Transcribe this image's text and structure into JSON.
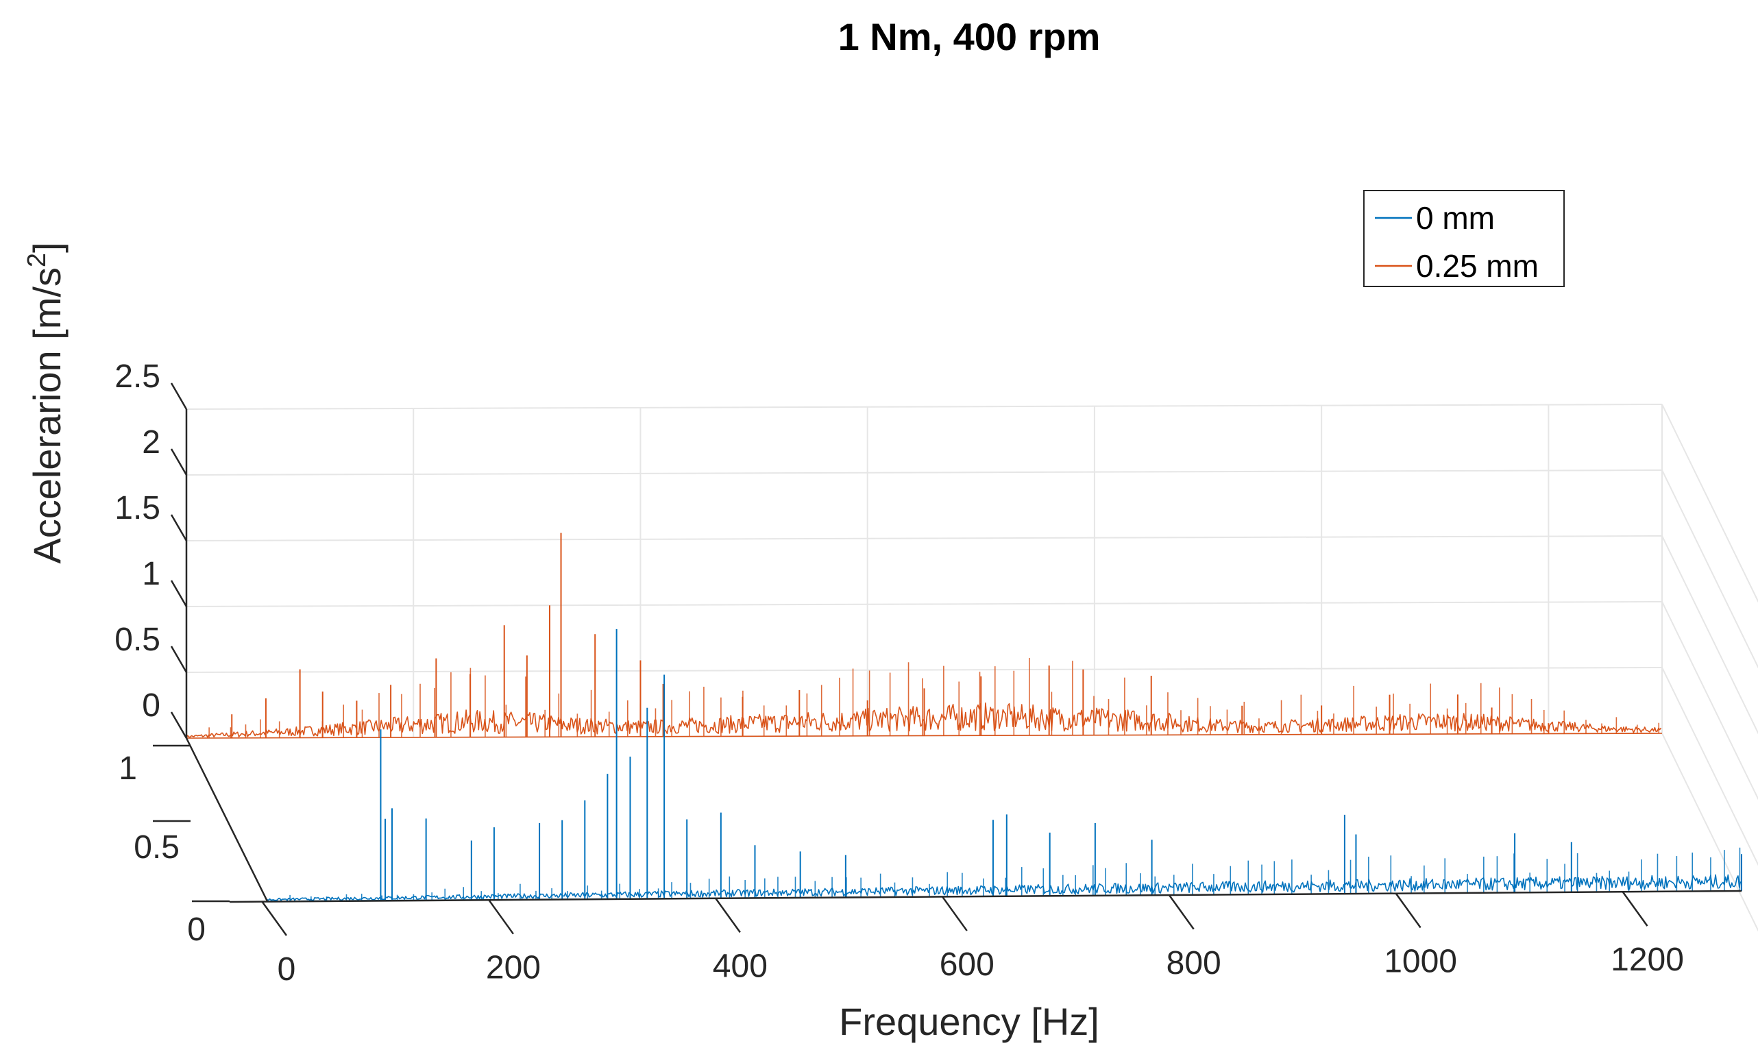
{
  "chart_data": {
    "type": "line",
    "view": "3d-waterfall",
    "title": "1 Nm, 400 rpm",
    "xlabel": "Frequency [Hz]",
    "ylabel": "Accelerarion [m/s",
    "ylabel_superscript": "2",
    "ylabel_suffix": "]",
    "xlim": [
      0,
      1300
    ],
    "x_ticks": [
      0,
      200,
      400,
      600,
      800,
      1000,
      1200
    ],
    "x_tick_labels": [
      "0",
      "200",
      "400",
      "600",
      "800",
      "1000",
      "1200"
    ],
    "z_ticks": [
      0,
      0.5,
      1,
      1.5,
      2,
      2.5
    ],
    "z_tick_labels": [
      "0",
      "0.5",
      "1",
      "1.5",
      "2",
      "2.5"
    ],
    "depth_ticks": [
      0,
      0.5,
      1
    ],
    "depth_tick_labels": [
      "0",
      "0.5",
      "1"
    ],
    "zlim": [
      0,
      2.5
    ],
    "grid": true,
    "legend_position": "top-right",
    "series": [
      {
        "name": "0 mm",
        "color": "#0072BD",
        "depth": 0,
        "peaks": [
          {
            "x": 100,
            "y": 1.3
          },
          {
            "x": 104,
            "y": 0.62
          },
          {
            "x": 110,
            "y": 0.7
          },
          {
            "x": 140,
            "y": 0.62
          },
          {
            "x": 180,
            "y": 0.45
          },
          {
            "x": 200,
            "y": 0.55
          },
          {
            "x": 240,
            "y": 0.58
          },
          {
            "x": 260,
            "y": 0.6
          },
          {
            "x": 280,
            "y": 0.75
          },
          {
            "x": 300,
            "y": 0.95
          },
          {
            "x": 308,
            "y": 2.05
          },
          {
            "x": 320,
            "y": 1.08
          },
          {
            "x": 335,
            "y": 1.45
          },
          {
            "x": 350,
            "y": 1.7
          },
          {
            "x": 370,
            "y": 0.6
          },
          {
            "x": 400,
            "y": 0.65
          },
          {
            "x": 430,
            "y": 0.4
          },
          {
            "x": 470,
            "y": 0.35
          },
          {
            "x": 510,
            "y": 0.32
          },
          {
            "x": 640,
            "y": 0.58
          },
          {
            "x": 652,
            "y": 0.62
          },
          {
            "x": 690,
            "y": 0.48
          },
          {
            "x": 730,
            "y": 0.55
          },
          {
            "x": 780,
            "y": 0.42
          },
          {
            "x": 950,
            "y": 0.6
          },
          {
            "x": 960,
            "y": 0.45
          },
          {
            "x": 1100,
            "y": 0.45
          },
          {
            "x": 1150,
            "y": 0.38
          },
          {
            "x": 1300,
            "y": 0.28
          }
        ]
      },
      {
        "name": "0.25 mm",
        "color": "#D95319",
        "depth": 1,
        "peaks": [
          {
            "x": 40,
            "y": 0.18
          },
          {
            "x": 70,
            "y": 0.3
          },
          {
            "x": 100,
            "y": 0.52
          },
          {
            "x": 120,
            "y": 0.35
          },
          {
            "x": 150,
            "y": 0.28
          },
          {
            "x": 180,
            "y": 0.4
          },
          {
            "x": 220,
            "y": 0.6
          },
          {
            "x": 250,
            "y": 0.48
          },
          {
            "x": 280,
            "y": 0.85
          },
          {
            "x": 300,
            "y": 0.62
          },
          {
            "x": 320,
            "y": 1.0
          },
          {
            "x": 330,
            "y": 1.55
          },
          {
            "x": 360,
            "y": 0.78
          },
          {
            "x": 400,
            "y": 0.58
          },
          {
            "x": 420,
            "y": 0.4
          },
          {
            "x": 490,
            "y": 0.3
          },
          {
            "x": 540,
            "y": 0.35
          },
          {
            "x": 600,
            "y": 0.27
          },
          {
            "x": 650,
            "y": 0.36
          },
          {
            "x": 700,
            "y": 0.45
          },
          {
            "x": 760,
            "y": 0.53
          },
          {
            "x": 790,
            "y": 0.5
          },
          {
            "x": 850,
            "y": 0.45
          },
          {
            "x": 930,
            "y": 0.22
          },
          {
            "x": 1000,
            "y": 0.22
          },
          {
            "x": 1060,
            "y": 0.3
          },
          {
            "x": 1120,
            "y": 0.3
          },
          {
            "x": 1150,
            "y": 0.2
          },
          {
            "x": 1200,
            "y": 0.08
          }
        ],
        "envelope": [
          [
            0,
            0.02
          ],
          [
            50,
            0.05
          ],
          [
            100,
            0.08
          ],
          [
            150,
            0.12
          ],
          [
            200,
            0.16
          ],
          [
            250,
            0.2
          ],
          [
            300,
            0.18
          ],
          [
            350,
            0.14
          ],
          [
            400,
            0.12
          ],
          [
            450,
            0.14
          ],
          [
            500,
            0.16
          ],
          [
            550,
            0.18
          ],
          [
            600,
            0.2
          ],
          [
            650,
            0.22
          ],
          [
            700,
            0.24
          ],
          [
            750,
            0.22
          ],
          [
            800,
            0.2
          ],
          [
            850,
            0.18
          ],
          [
            900,
            0.12
          ],
          [
            950,
            0.1
          ],
          [
            1000,
            0.12
          ],
          [
            1050,
            0.14
          ],
          [
            1100,
            0.16
          ],
          [
            1150,
            0.14
          ],
          [
            1200,
            0.1
          ],
          [
            1250,
            0.06
          ],
          [
            1300,
            0.04
          ]
        ]
      }
    ]
  }
}
